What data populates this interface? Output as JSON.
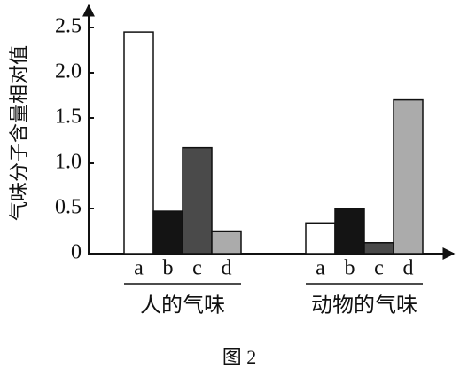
{
  "chart_data": {
    "type": "bar",
    "caption": "图 2",
    "y_label": "气味分子含量相对值",
    "categories": [
      "人的气味",
      "动物的气味"
    ],
    "series": [
      {
        "name": "a",
        "color": "#ffffff",
        "values": [
          2.45,
          0.34
        ]
      },
      {
        "name": "b",
        "color": "#141414",
        "values": [
          0.47,
          0.5
        ]
      },
      {
        "name": "c",
        "color": "#4a4a4a",
        "values": [
          1.17,
          0.12
        ]
      },
      {
        "name": "d",
        "color": "#ababab",
        "values": [
          0.25,
          1.7
        ]
      }
    ],
    "ylim": [
      0,
      2.7
    ],
    "yticks": [
      0,
      0.5,
      {
        "value": 1,
        "label": "1.0"
      },
      1.5,
      {
        "value": 2,
        "label": "2.0"
      },
      2.5
    ]
  }
}
